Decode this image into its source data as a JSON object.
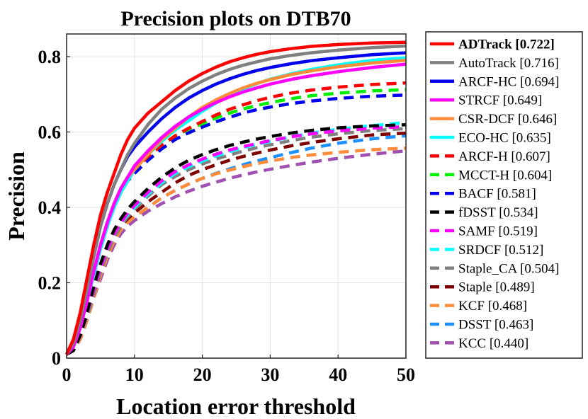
{
  "chart_data": {
    "type": "line",
    "title": "Precision plots on DTB70",
    "xlabel": "Location error threshold",
    "ylabel": "Precision",
    "xlim": [
      0,
      50
    ],
    "ylim": [
      0,
      0.86
    ],
    "xticks": [
      0,
      10,
      20,
      30,
      40,
      50
    ],
    "yticks": [
      0,
      0.2,
      0.4,
      0.6,
      0.8
    ],
    "xtick_labels": [
      "0",
      "10",
      "20",
      "30",
      "40",
      "50"
    ],
    "ytick_labels": [
      "0",
      "0.2",
      "0.4",
      "0.6",
      "0.8"
    ],
    "grid": true,
    "legend_position": "right",
    "x": [
      0,
      1,
      2,
      3,
      4,
      5,
      6,
      7,
      8,
      9,
      10,
      12,
      14,
      16,
      18,
      20,
      22,
      24,
      26,
      28,
      30,
      33,
      36,
      40,
      45,
      50
    ],
    "series": [
      {
        "name": "ADTrack [0.722]",
        "bold": true,
        "color": "#ff0000",
        "dash": "solid",
        "values": [
          0.01,
          0.05,
          0.12,
          0.21,
          0.3,
          0.38,
          0.44,
          0.49,
          0.54,
          0.58,
          0.61,
          0.65,
          0.68,
          0.71,
          0.735,
          0.755,
          0.772,
          0.786,
          0.797,
          0.806,
          0.813,
          0.821,
          0.827,
          0.832,
          0.836,
          0.838
        ]
      },
      {
        "name": "AutoTrack [0.716]",
        "color": "#808080",
        "dash": "solid",
        "values": [
          0.01,
          0.04,
          0.1,
          0.18,
          0.27,
          0.35,
          0.41,
          0.46,
          0.5,
          0.54,
          0.57,
          0.62,
          0.66,
          0.69,
          0.715,
          0.735,
          0.752,
          0.766,
          0.777,
          0.786,
          0.794,
          0.803,
          0.81,
          0.817,
          0.824,
          0.828
        ]
      },
      {
        "name": "ARCF-HC [0.694]",
        "color": "#0000ee",
        "dash": "solid",
        "values": [
          0.01,
          0.04,
          0.1,
          0.18,
          0.27,
          0.35,
          0.41,
          0.46,
          0.5,
          0.535,
          0.56,
          0.6,
          0.635,
          0.665,
          0.69,
          0.71,
          0.727,
          0.741,
          0.753,
          0.763,
          0.771,
          0.781,
          0.789,
          0.797,
          0.805,
          0.81
        ]
      },
      {
        "name": "STRCF [0.649]",
        "color": "#ff00ff",
        "dash": "solid",
        "values": [
          0.01,
          0.03,
          0.08,
          0.15,
          0.23,
          0.3,
          0.36,
          0.41,
          0.45,
          0.48,
          0.51,
          0.55,
          0.585,
          0.615,
          0.64,
          0.66,
          0.678,
          0.693,
          0.706,
          0.717,
          0.727,
          0.739,
          0.749,
          0.76,
          0.771,
          0.78
        ]
      },
      {
        "name": "CSR-DCF [0.646]",
        "color": "#ff8c3a",
        "dash": "solid",
        "values": [
          0.01,
          0.03,
          0.08,
          0.15,
          0.23,
          0.3,
          0.36,
          0.41,
          0.45,
          0.48,
          0.5,
          0.54,
          0.58,
          0.61,
          0.64,
          0.665,
          0.685,
          0.702,
          0.717,
          0.729,
          0.739,
          0.752,
          0.762,
          0.773,
          0.783,
          0.79
        ]
      },
      {
        "name": "ECO-HC [0.635]",
        "color": "#00ffff",
        "dash": "solid",
        "values": [
          0.01,
          0.03,
          0.08,
          0.15,
          0.22,
          0.29,
          0.35,
          0.4,
          0.44,
          0.47,
          0.5,
          0.54,
          0.575,
          0.605,
          0.63,
          0.655,
          0.677,
          0.697,
          0.714,
          0.728,
          0.74,
          0.754,
          0.766,
          0.778,
          0.79,
          0.797
        ]
      },
      {
        "name": "ARCF-H [0.607]",
        "color": "#ff0000",
        "dash": "dashed",
        "values": [
          0.01,
          0.03,
          0.08,
          0.15,
          0.23,
          0.3,
          0.36,
          0.41,
          0.45,
          0.48,
          0.5,
          0.535,
          0.565,
          0.59,
          0.61,
          0.628,
          0.645,
          0.66,
          0.672,
          0.683,
          0.692,
          0.703,
          0.711,
          0.719,
          0.726,
          0.73
        ]
      },
      {
        "name": "MCCT-H [0.604]",
        "color": "#00ee00",
        "dash": "dashed",
        "values": [
          0.01,
          0.03,
          0.08,
          0.15,
          0.23,
          0.3,
          0.36,
          0.41,
          0.45,
          0.48,
          0.5,
          0.535,
          0.565,
          0.59,
          0.607,
          0.622,
          0.637,
          0.65,
          0.661,
          0.67,
          0.678,
          0.688,
          0.696,
          0.703,
          0.709,
          0.712
        ]
      },
      {
        "name": "BACF [0.581]",
        "color": "#0000ee",
        "dash": "dashed",
        "values": [
          0.01,
          0.03,
          0.08,
          0.15,
          0.22,
          0.29,
          0.35,
          0.4,
          0.44,
          0.47,
          0.49,
          0.525,
          0.555,
          0.58,
          0.598,
          0.613,
          0.627,
          0.639,
          0.65,
          0.659,
          0.666,
          0.675,
          0.682,
          0.689,
          0.695,
          0.698
        ]
      },
      {
        "name": "fDSST [0.534]",
        "color": "#000000",
        "dash": "dashed",
        "values": [
          0.01,
          0.02,
          0.06,
          0.12,
          0.19,
          0.25,
          0.3,
          0.34,
          0.37,
          0.395,
          0.415,
          0.45,
          0.48,
          0.505,
          0.525,
          0.54,
          0.553,
          0.564,
          0.573,
          0.581,
          0.588,
          0.597,
          0.604,
          0.611,
          0.616,
          0.619
        ]
      },
      {
        "name": "SAMF [0.519]",
        "color": "#ff00ff",
        "dash": "dashed",
        "values": [
          0.01,
          0.02,
          0.06,
          0.12,
          0.18,
          0.24,
          0.29,
          0.33,
          0.36,
          0.385,
          0.405,
          0.44,
          0.47,
          0.495,
          0.513,
          0.528,
          0.541,
          0.552,
          0.561,
          0.569,
          0.577,
          0.587,
          0.595,
          0.603,
          0.61,
          0.614
        ]
      },
      {
        "name": "SRDCF [0.512]",
        "color": "#00ffff",
        "dash": "dashed",
        "values": [
          0.01,
          0.02,
          0.06,
          0.12,
          0.18,
          0.24,
          0.29,
          0.33,
          0.36,
          0.38,
          0.4,
          0.435,
          0.465,
          0.49,
          0.508,
          0.523,
          0.536,
          0.548,
          0.558,
          0.567,
          0.575,
          0.587,
          0.597,
          0.607,
          0.617,
          0.625
        ]
      },
      {
        "name": "Staple_CA [0.504]",
        "color": "#808080",
        "dash": "dashed",
        "values": [
          0.01,
          0.02,
          0.06,
          0.11,
          0.17,
          0.23,
          0.28,
          0.32,
          0.35,
          0.375,
          0.395,
          0.43,
          0.46,
          0.482,
          0.5,
          0.515,
          0.528,
          0.539,
          0.549,
          0.558,
          0.566,
          0.577,
          0.586,
          0.595,
          0.604,
          0.609
        ]
      },
      {
        "name": "Staple [0.489]",
        "color": "#800000",
        "dash": "dashed",
        "values": [
          0.01,
          0.02,
          0.06,
          0.11,
          0.17,
          0.23,
          0.28,
          0.32,
          0.35,
          0.37,
          0.385,
          0.415,
          0.44,
          0.465,
          0.485,
          0.5,
          0.513,
          0.525,
          0.535,
          0.544,
          0.552,
          0.563,
          0.572,
          0.582,
          0.592,
          0.597
        ]
      },
      {
        "name": "KCF [0.468]",
        "color": "#ff8c3a",
        "dash": "dashed",
        "values": [
          0.01,
          0.02,
          0.05,
          0.1,
          0.16,
          0.22,
          0.27,
          0.31,
          0.34,
          0.36,
          0.375,
          0.4,
          0.425,
          0.445,
          0.462,
          0.477,
          0.489,
          0.499,
          0.508,
          0.516,
          0.523,
          0.532,
          0.539,
          0.546,
          0.553,
          0.557
        ]
      },
      {
        "name": "DSST [0.463]",
        "color": "#1e90ff",
        "dash": "dashed",
        "values": [
          0.01,
          0.02,
          0.05,
          0.1,
          0.16,
          0.22,
          0.27,
          0.31,
          0.34,
          0.36,
          0.375,
          0.4,
          0.425,
          0.445,
          0.462,
          0.477,
          0.49,
          0.502,
          0.513,
          0.523,
          0.532,
          0.545,
          0.557,
          0.57,
          0.582,
          0.59
        ]
      },
      {
        "name": "KCC [0.440]",
        "color": "#a050b0",
        "dash": "dashed",
        "values": [
          0.01,
          0.02,
          0.05,
          0.1,
          0.16,
          0.21,
          0.26,
          0.3,
          0.33,
          0.35,
          0.365,
          0.39,
          0.41,
          0.428,
          0.443,
          0.456,
          0.467,
          0.477,
          0.486,
          0.494,
          0.501,
          0.511,
          0.52,
          0.53,
          0.541,
          0.55
        ]
      }
    ]
  }
}
